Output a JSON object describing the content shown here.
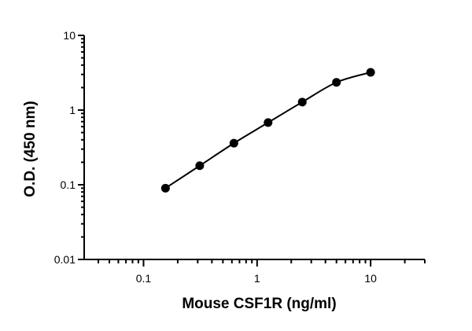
{
  "chart_data": {
    "type": "scatter",
    "xlabel": "Mouse CSF1R (ng/ml)",
    "ylabel": "O.D. (450 nm)",
    "x_scale": "log",
    "y_scale": "log",
    "xlim": [
      0.03,
      30
    ],
    "ylim": [
      0.01,
      10
    ],
    "x_ticks": [
      {
        "value": 0.1,
        "label": "0.1"
      },
      {
        "value": 1,
        "label": "1"
      },
      {
        "value": 10,
        "label": "10"
      }
    ],
    "y_ticks": [
      {
        "value": 0.01,
        "label": "0.01"
      },
      {
        "value": 0.1,
        "label": "0.1"
      },
      {
        "value": 1,
        "label": "1"
      },
      {
        "value": 10,
        "label": "10"
      }
    ],
    "grid": false,
    "fit_curve": true,
    "series": [
      {
        "x": [
          0.156,
          0.3125,
          0.625,
          1.25,
          2.5,
          5,
          10
        ],
        "y": [
          0.09,
          0.18,
          0.36,
          0.68,
          1.28,
          2.35,
          3.2
        ]
      }
    ]
  }
}
